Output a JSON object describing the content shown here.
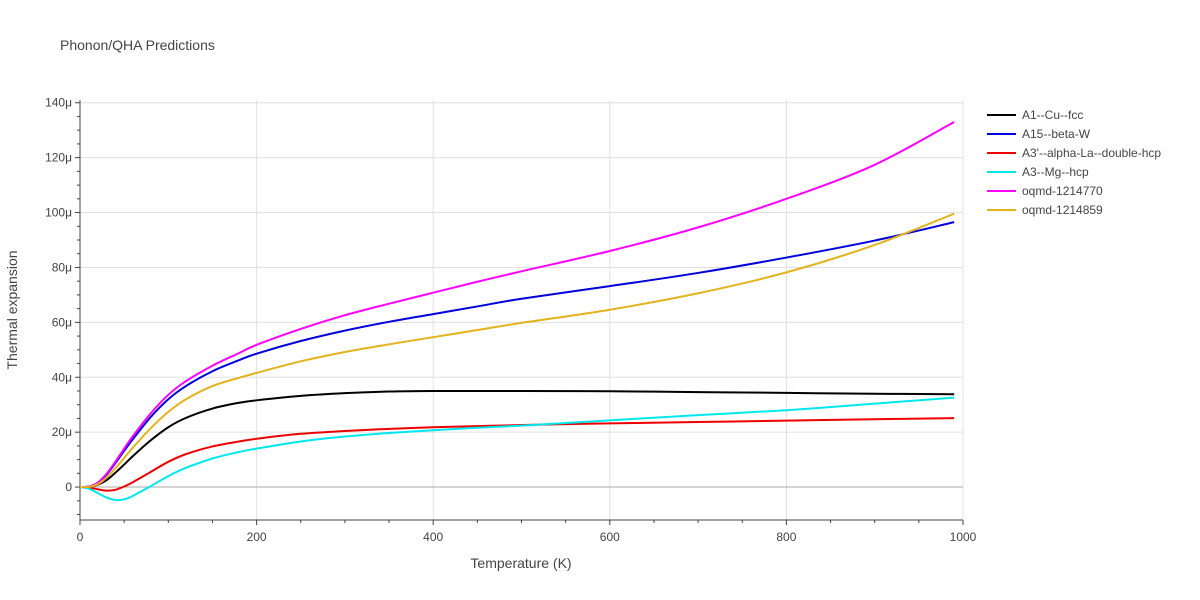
{
  "chart_data": {
    "type": "line",
    "title": "Phonon/QHA Predictions",
    "xlabel": "Temperature (K)",
    "ylabel": "Thermal expansion",
    "xlim": [
      0,
      1000
    ],
    "ylim": [
      -12,
      141
    ],
    "x_ticks": [
      0,
      200,
      400,
      600,
      800,
      1000
    ],
    "x_tick_labels": [
      "0",
      "200",
      "400",
      "600",
      "800",
      "1000"
    ],
    "y_ticks": [
      0,
      20,
      40,
      60,
      80,
      100,
      120,
      140
    ],
    "y_tick_labels": [
      "0",
      "20μ",
      "40μ",
      "60μ",
      "80μ",
      "100μ",
      "120μ",
      "140μ"
    ],
    "grid": true,
    "legend_position": "top-right",
    "series": [
      {
        "name": "A1--Cu--fcc",
        "color": "#000000",
        "x": [
          0,
          10,
          20,
          30,
          40,
          50,
          60,
          80,
          100,
          120,
          150,
          180,
          200,
          250,
          300,
          350,
          400,
          450,
          500,
          600,
          700,
          800,
          900,
          990
        ],
        "y": [
          0,
          0.1,
          0.8,
          2.5,
          5.2,
          8.2,
          11.3,
          17.0,
          21.8,
          25.2,
          28.6,
          30.7,
          31.6,
          33.2,
          34.2,
          34.8,
          35.0,
          35.0,
          35.0,
          34.9,
          34.6,
          34.3,
          34.0,
          33.8
        ]
      },
      {
        "name": "A15--beta-W",
        "color": "#0000dd",
        "x": [
          0,
          10,
          20,
          30,
          40,
          50,
          60,
          80,
          100,
          120,
          150,
          180,
          200,
          250,
          300,
          350,
          400,
          450,
          500,
          600,
          700,
          800,
          900,
          990
        ],
        "y": [
          0,
          0.2,
          1.5,
          4.5,
          8.7,
          13.2,
          17.5,
          25.5,
          32.0,
          36.8,
          42.2,
          46.2,
          48.6,
          53.2,
          57.0,
          60.2,
          63.0,
          65.8,
          68.6,
          73.2,
          78.0,
          83.6,
          89.8,
          96.5
        ]
      },
      {
        "name": "A3'--alpha-La--double-hcp",
        "color": "#ee0000",
        "x": [
          0,
          10,
          20,
          30,
          40,
          50,
          60,
          80,
          100,
          120,
          150,
          180,
          200,
          250,
          300,
          350,
          400,
          450,
          500,
          600,
          700,
          800,
          900,
          990
        ],
        "y": [
          0,
          -0.2,
          -0.8,
          -1.3,
          -1.0,
          0.2,
          1.8,
          5.5,
          9.2,
          12.0,
          14.8,
          16.6,
          17.6,
          19.4,
          20.4,
          21.2,
          21.8,
          22.2,
          22.6,
          23.2,
          23.7,
          24.2,
          24.7,
          25.1
        ]
      },
      {
        "name": "A3--Mg--hcp",
        "color": "#00e8ee",
        "x": [
          0,
          10,
          20,
          30,
          40,
          50,
          60,
          80,
          100,
          120,
          150,
          180,
          200,
          250,
          300,
          350,
          400,
          450,
          500,
          600,
          700,
          800,
          900,
          990
        ],
        "y": [
          0,
          -0.6,
          -2.2,
          -3.8,
          -4.7,
          -4.5,
          -3.2,
          0.3,
          4.0,
          7.0,
          10.4,
          12.8,
          14.0,
          16.6,
          18.4,
          19.7,
          20.7,
          21.6,
          22.4,
          24.3,
          26.2,
          28.0,
          30.4,
          32.6
        ]
      },
      {
        "name": "oqmd-1214770",
        "color": "#ff00ff",
        "x": [
          0,
          10,
          20,
          30,
          40,
          50,
          60,
          80,
          100,
          120,
          150,
          180,
          200,
          250,
          300,
          350,
          400,
          450,
          500,
          600,
          700,
          800,
          900,
          990
        ],
        "y": [
          0,
          0.2,
          1.6,
          4.8,
          9.2,
          14.0,
          18.6,
          26.8,
          33.6,
          38.6,
          44.2,
          48.8,
          51.8,
          57.6,
          62.6,
          66.8,
          70.8,
          74.8,
          78.6,
          86.0,
          94.6,
          105.0,
          117.4,
          133.0
        ]
      },
      {
        "name": "oqmd-1214859",
        "color": "#e3b21c",
        "x": [
          0,
          10,
          20,
          30,
          40,
          50,
          60,
          80,
          100,
          120,
          150,
          180,
          200,
          250,
          300,
          350,
          400,
          450,
          500,
          600,
          700,
          800,
          900,
          990
        ],
        "y": [
          0,
          0.1,
          1.0,
          3.4,
          6.8,
          10.6,
          14.4,
          21.4,
          27.4,
          32.0,
          36.8,
          39.8,
          41.6,
          45.8,
          49.2,
          52.0,
          54.6,
          57.2,
          59.8,
          64.6,
          70.6,
          78.2,
          88.2,
          99.6
        ]
      }
    ]
  }
}
